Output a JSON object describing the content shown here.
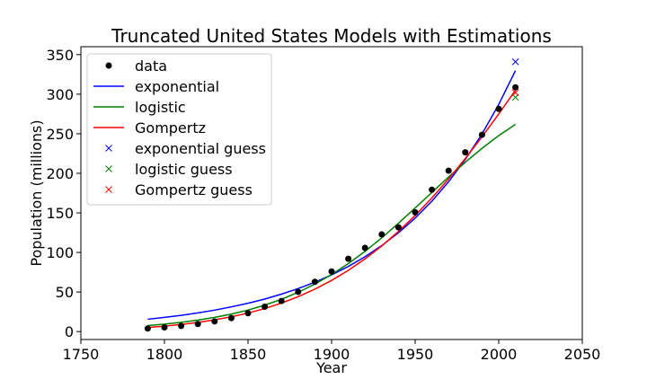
{
  "chart_data": {
    "type": "line",
    "title": "Truncated United States Models with Estimations",
    "xlabel": "Year",
    "ylabel": "Population (millions)",
    "xlim": [
      1750,
      2050
    ],
    "ylim": [
      -10,
      360
    ],
    "xticks": [
      1750,
      1800,
      1850,
      1900,
      1950,
      2000,
      2050
    ],
    "yticks": [
      0,
      50,
      100,
      150,
      200,
      250,
      300,
      350
    ],
    "grid": false,
    "legend_position": "upper-left",
    "data": {
      "name": "data",
      "color": "#000000",
      "x": [
        1790,
        1800,
        1810,
        1820,
        1830,
        1840,
        1850,
        1860,
        1870,
        1880,
        1890,
        1900,
        1910,
        1920,
        1930,
        1940,
        1950,
        1960,
        1970,
        1980,
        1990,
        2000,
        2010
      ],
      "y": [
        3.9,
        5.3,
        7.2,
        9.6,
        12.9,
        17.1,
        23.2,
        31.4,
        38.6,
        50.2,
        62.9,
        76.0,
        92.0,
        105.7,
        122.8,
        131.7,
        150.7,
        179.3,
        203.3,
        226.5,
        248.7,
        281.4,
        308.7
      ]
    },
    "series": [
      {
        "name": "exponential",
        "color": "#0000ff",
        "x": [
          1790,
          1800,
          1810,
          1820,
          1830,
          1840,
          1850,
          1860,
          1870,
          1880,
          1890,
          1900,
          1910,
          1920,
          1930,
          1940,
          1950,
          1960,
          1970,
          1980,
          1990,
          2000,
          2010
        ],
        "y": [
          15.6,
          17.9,
          20.5,
          23.6,
          27.1,
          31.2,
          35.8,
          41.1,
          47.3,
          54.3,
          62.4,
          71.7,
          82.3,
          94.6,
          108.7,
          124.8,
          143.4,
          164.8,
          189.3,
          217.5,
          249.8,
          287.0,
          329.7
        ]
      },
      {
        "name": "logistic",
        "color": "#008000",
        "x": [
          1790,
          1800,
          1810,
          1820,
          1830,
          1840,
          1850,
          1860,
          1870,
          1880,
          1890,
          1900,
          1910,
          1920,
          1930,
          1940,
          1950,
          1960,
          1970,
          1980,
          1990,
          2000,
          2010
        ],
        "y": [
          7.6,
          9.4,
          11.7,
          14.5,
          17.9,
          22.1,
          27.2,
          33.4,
          40.8,
          49.6,
          60.0,
          72.1,
          85.9,
          101.4,
          118.5,
          136.9,
          156.2,
          175.8,
          195.3,
          214.0,
          231.6,
          247.6,
          261.8
        ]
      },
      {
        "name": "Gompertz",
        "color": "#ff0000",
        "x": [
          1790,
          1800,
          1810,
          1820,
          1830,
          1840,
          1850,
          1860,
          1870,
          1880,
          1890,
          1900,
          1910,
          1920,
          1930,
          1940,
          1950,
          1960,
          1970,
          1980,
          1990,
          2000,
          2010
        ],
        "y": [
          5.2,
          6.9,
          9.0,
          11.6,
          14.8,
          18.7,
          23.4,
          29.1,
          36.0,
          44.1,
          53.6,
          64.7,
          77.4,
          91.9,
          108.2,
          126.5,
          146.7,
          168.9,
          192.9,
          218.7,
          246.1,
          275.0,
          305.0
        ]
      }
    ],
    "guesses": [
      {
        "name": "exponential guess",
        "color": "#0000ff",
        "x": 2010,
        "y": 341
      },
      {
        "name": "logistic guess",
        "color": "#008000",
        "x": 2010,
        "y": 296
      },
      {
        "name": "Gompertz guess",
        "color": "#ff0000",
        "x": 2010,
        "y": 302
      }
    ]
  }
}
